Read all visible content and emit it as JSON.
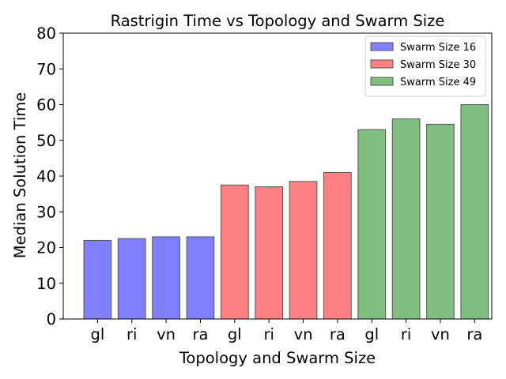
{
  "chart_data": {
    "type": "bar",
    "title": "Rastrigin Time vs Topology and Swarm Size",
    "xlabel": "Topology and Swarm Size",
    "ylabel": "Median Solution Time",
    "ylim": [
      0,
      80
    ],
    "yticks": [
      0,
      10,
      20,
      30,
      40,
      50,
      60,
      70,
      80
    ],
    "grid": false,
    "legend_position": "top-right",
    "series": [
      {
        "name": "Swarm Size 16",
        "color": "#8080ff",
        "categories": [
          "gl",
          "ri",
          "vn",
          "ra"
        ],
        "values": [
          22.0,
          22.5,
          23.0,
          23.0
        ]
      },
      {
        "name": "Swarm Size 30",
        "color": "#ff8080",
        "categories": [
          "gl",
          "ri",
          "vn",
          "ra"
        ],
        "values": [
          37.5,
          37.0,
          38.5,
          41.0
        ]
      },
      {
        "name": "Swarm Size 49",
        "color": "#80bf80",
        "categories": [
          "gl",
          "ri",
          "vn",
          "ra"
        ],
        "values": [
          53.0,
          56.0,
          54.5,
          60.0
        ]
      }
    ]
  }
}
